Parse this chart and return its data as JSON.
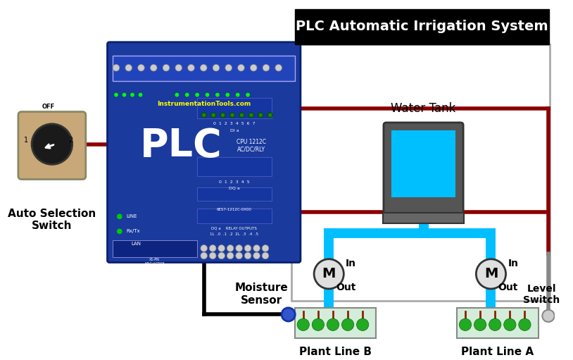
{
  "title": "PLC Automatic Irrigation System",
  "bg_color": "#ffffff",
  "title_bg": "#000000",
  "title_fg": "#ffffff",
  "plc_color": "#1a3a9e",
  "plc_label": "PLC",
  "plc_sub": "CPU 1212C\nAC/DC/RLY",
  "plc_sub2": "InstrumentationTools.com",
  "switch_label": "Auto Selection\nSwitch",
  "switch_off": "OFF",
  "tank_label": "Water Tank",
  "motor_b_in": "In",
  "motor_b_out": "Out",
  "motor_a_in": "In",
  "motor_a_out": "Out",
  "moisture_label": "Moisture\nSensor",
  "plant_b_label": "Plant Line B",
  "plant_a_label": "Plant Line A",
  "level_switch_label": "Level\nSwitch",
  "wire_dark_red": "#8b0000",
  "wire_black": "#000000",
  "wire_blue": "#00bfff",
  "wire_gray": "#888888"
}
